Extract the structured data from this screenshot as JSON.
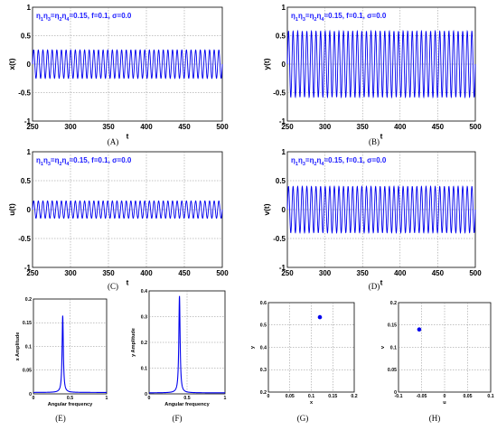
{
  "annotation": {
    "base": "η",
    "parts": [
      {
        "t": "1",
        "s": true
      },
      {
        "t": "η",
        "s": false
      },
      {
        "t": "3",
        "s": true
      },
      {
        "t": "=η",
        "s": false
      },
      {
        "t": "2",
        "s": true
      },
      {
        "t": "η",
        "s": false
      },
      {
        "t": "4",
        "s": true
      },
      {
        "t": "=0.15, f=0.1, σ=0.0",
        "s": false
      }
    ]
  },
  "colors": {
    "line": "#0000ee",
    "annotation": "#1a1aff",
    "grid": "#888888"
  },
  "chart_data": [
    {
      "id": "A",
      "type": "line",
      "caption": "(A)",
      "xlabel": "t",
      "ylabel": "x(t)",
      "xlim": [
        250,
        500
      ],
      "ylim": [
        -1,
        1
      ],
      "xticks": [
        "250",
        "300",
        "350",
        "400",
        "450",
        "500"
      ],
      "yticks": [
        "-1",
        "-0.5",
        "0",
        "0.5",
        "1"
      ],
      "oscillation": {
        "amplitude": 0.25,
        "cycles": 41,
        "offset": 0.0
      }
    },
    {
      "id": "B",
      "type": "line",
      "caption": "(B)",
      "xlabel": "t",
      "ylabel": "y(t)",
      "xlim": [
        250,
        500
      ],
      "ylim": [
        -1,
        1
      ],
      "xticks": [
        "250",
        "300",
        "350",
        "400",
        "450",
        "500"
      ],
      "yticks": [
        "-1",
        "-0.5",
        "0",
        "0.5",
        "1"
      ],
      "oscillation": {
        "amplitude": 0.58,
        "cycles": 41,
        "offset": 0.0
      }
    },
    {
      "id": "C",
      "type": "line",
      "caption": "(C)",
      "xlabel": "t",
      "ylabel": "u(t)",
      "xlim": [
        250,
        500
      ],
      "ylim": [
        -1,
        1
      ],
      "xticks": [
        "250",
        "300",
        "350",
        "400",
        "450",
        "500"
      ],
      "yticks": [
        "-1",
        "-0.5",
        "0",
        "0.5",
        "1"
      ],
      "oscillation": {
        "amplitude": 0.15,
        "cycles": 41,
        "offset": 0.0
      }
    },
    {
      "id": "D",
      "type": "line",
      "caption": "(D)",
      "xlabel": "t",
      "ylabel": "v(t)",
      "xlim": [
        250,
        500
      ],
      "ylim": [
        -1,
        1
      ],
      "xticks": [
        "250",
        "300",
        "350",
        "400",
        "450",
        "500"
      ],
      "yticks": [
        "-1",
        "-0.5",
        "0",
        "0.5",
        "1"
      ],
      "oscillation": {
        "amplitude": 0.4,
        "cycles": 41,
        "offset": 0.0
      }
    },
    {
      "id": "E",
      "type": "line",
      "caption": "(E)",
      "xlabel": "Angular frequency",
      "ylabel": "x Amplitude",
      "xlim": [
        0,
        1
      ],
      "ylim": [
        0,
        0.2
      ],
      "xticks": [
        "0",
        "0.5",
        "1"
      ],
      "yticks": [
        "0",
        "0.05",
        "0.1",
        "0.15",
        "0.2"
      ],
      "peak": {
        "x": 0.4,
        "y": 0.165,
        "base": 0.003,
        "width": 0.01
      }
    },
    {
      "id": "F",
      "type": "line",
      "caption": "(F)",
      "xlabel": "Angular frequency",
      "ylabel": "y Amplitude",
      "xlim": [
        0,
        1
      ],
      "ylim": [
        0,
        0.4
      ],
      "xticks": [
        "0",
        "0.5",
        "1"
      ],
      "yticks": [
        "0",
        "0.1",
        "0.2",
        "0.3",
        "0.4"
      ],
      "peak": {
        "x": 0.4,
        "y": 0.38,
        "base": 0.004,
        "width": 0.01
      }
    },
    {
      "id": "G",
      "type": "scatter",
      "caption": "(G)",
      "xlabel": "x",
      "ylabel": "y",
      "xlim": [
        0,
        0.2
      ],
      "ylim": [
        0.2,
        0.6
      ],
      "xticks": [
        "0",
        "0.05",
        "0.1",
        "0.15",
        "0.2"
      ],
      "yticks": [
        "0.2",
        "0.3",
        "0.4",
        "0.5",
        "0.6"
      ],
      "points": [
        {
          "x": 0.12,
          "y": 0.535
        }
      ]
    },
    {
      "id": "H",
      "type": "scatter",
      "caption": "(H)",
      "xlabel": "u",
      "ylabel": "v",
      "xlim": [
        -0.1,
        0.1
      ],
      "ylim": [
        0,
        0.2
      ],
      "xticks": [
        "-0.1",
        "-0.05",
        "0",
        "0.05",
        "0.1"
      ],
      "yticks": [
        "0",
        "0.05",
        "0.1",
        "0.15",
        "0.2"
      ],
      "points": [
        {
          "x": -0.055,
          "y": 0.14
        }
      ]
    }
  ]
}
